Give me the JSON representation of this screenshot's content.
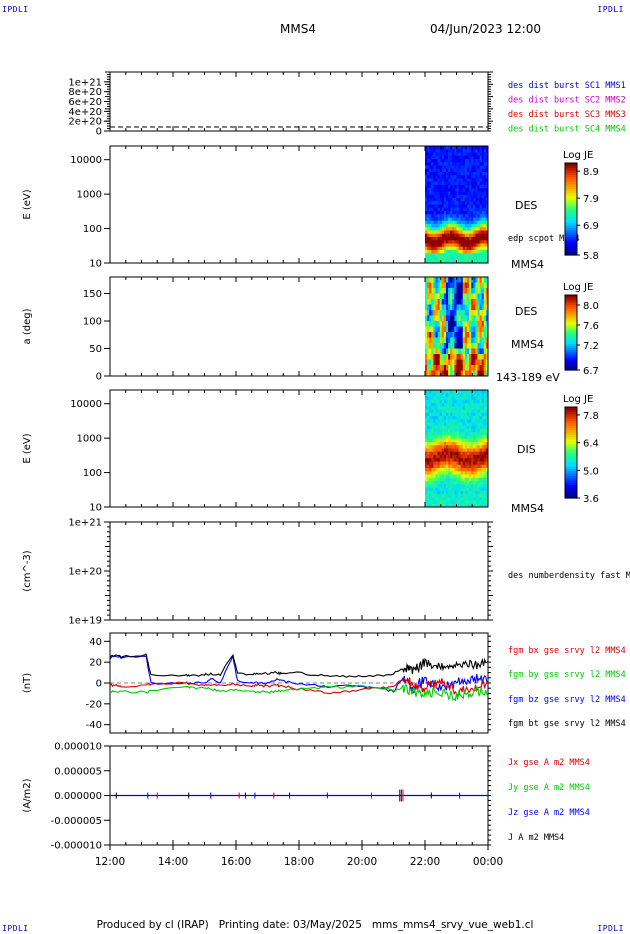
{
  "header": {
    "corner_tl": "IPDLI",
    "corner_tr": "IPDLI",
    "corner_bl": "IPDLI",
    "corner_br": "IPDLI",
    "spacecraft": "MMS4",
    "datetime": "04/Jun/2023 12:00"
  },
  "footer": {
    "produced": "Produced by cl (IRAP)",
    "printing": "Printing date: 03/May/2025",
    "file": "mms_mms4_srvy_vue_web1.cl"
  },
  "colors": {
    "c1": "#0000ff",
    "c2": "#cc00cc",
    "c3": "#dd0000",
    "c4": "#00cc00",
    "black": "#000000"
  },
  "chart_data": [
    {
      "type": "line",
      "panel": "burst",
      "ylabel": "",
      "yticks": [
        "1e+21",
        "8e+20",
        "6e+20",
        "4e+20",
        "2e+20",
        "0"
      ],
      "ylim": [
        0,
        1.2e+21
      ],
      "series": [
        {
          "name": "des dist burst SC1 MMS1",
          "color": "#0000ff"
        },
        {
          "name": "des dist burst SC2 MMS2",
          "color": "#cc00cc"
        },
        {
          "name": "des dist burst SC3 MMS3",
          "color": "#dd0000"
        },
        {
          "name": "des dist burst SC4 MMS4",
          "color": "#00cc00"
        }
      ],
      "values": "zero (dashed line at 0 for the whole interval)"
    },
    {
      "type": "heatmap",
      "panel": "des_energy",
      "ylabel": "E (eV)",
      "scale": "log",
      "ylim": [
        10,
        25000
      ],
      "yticks": [
        "10000",
        "1000",
        "100",
        "10"
      ],
      "label": "DES",
      "label2": "edp scpot MMS4",
      "label3": "MMS4",
      "colorbar": {
        "title": "Log JE",
        "ticks": [
          "8.9",
          "7.9",
          "6.9",
          "5.8"
        ],
        "range": [
          5.8,
          9.2
        ]
      },
      "data_start": "22:00",
      "data_end": "24:00"
    },
    {
      "type": "heatmap",
      "panel": "des_pitch",
      "ylabel": "a (deg)",
      "ylim": [
        0,
        180
      ],
      "yticks": [
        "150",
        "100",
        "50",
        "0"
      ],
      "label": "DES",
      "label2": "MMS4",
      "label3": "143-189 eV",
      "colorbar": {
        "title": "Log JE",
        "ticks": [
          "8.0",
          "7.6",
          "7.2",
          "6.7"
        ],
        "range": [
          6.7,
          8.2
        ]
      },
      "data_start": "22:00",
      "data_end": "24:00"
    },
    {
      "type": "heatmap",
      "panel": "dis_energy",
      "ylabel": "E (eV)",
      "scale": "log",
      "ylim": [
        10,
        25000
      ],
      "yticks": [
        "10000",
        "1000",
        "100",
        "10"
      ],
      "label": "DIS",
      "label3": "MMS4",
      "colorbar": {
        "title": "Log JE",
        "ticks": [
          "7.8",
          "6.4",
          "5.0",
          "3.6"
        ],
        "range": [
          3.6,
          8.2
        ]
      },
      "data_start": "22:00",
      "data_end": "24:00"
    },
    {
      "type": "line",
      "panel": "density",
      "ylabel": "(cm^-3)",
      "scale": "log",
      "yticks": [
        "1e+21",
        "1e+20",
        "1e+19"
      ],
      "series": [
        {
          "name": "des numberdensity fast M",
          "color": "#000000"
        }
      ]
    },
    {
      "type": "line",
      "panel": "fgm",
      "ylabel": "(nT)",
      "ylim": [
        -48,
        48
      ],
      "yticks": [
        "40",
        "20",
        "0",
        "-20",
        "-40"
      ],
      "x": [
        12.0,
        12.2,
        12.35,
        13.15,
        13.3,
        14.4,
        14.55,
        15.0,
        15.2,
        15.5,
        15.9,
        16.05,
        16.5,
        16.7,
        17.0,
        17.3,
        17.45,
        17.8,
        18.5,
        19.0,
        19.5,
        20.0,
        20.6,
        21.0,
        21.3,
        21.6,
        22.0,
        22.5,
        23.0,
        23.5,
        24.0
      ],
      "series": [
        {
          "name": "fgm bx gse srvy l2 MMS4",
          "color": "#dd0000",
          "values": [
            -2,
            -2,
            -3,
            -2,
            -1,
            0,
            -1,
            -2,
            -2,
            -2,
            -1,
            -2,
            -3,
            -2,
            -3,
            -2,
            -3,
            -5,
            -8,
            -10,
            -8,
            -6,
            -5,
            -3,
            5,
            0,
            -5,
            2,
            -8,
            -5,
            -2
          ]
        },
        {
          "name": "fgm by gse srvy l2 MMS4",
          "color": "#00cc00",
          "values": [
            -8,
            -9,
            -8,
            -9,
            -7,
            -4,
            -4,
            -5,
            -6,
            -8,
            -6,
            -7,
            -8,
            -8,
            -9,
            -8,
            -7,
            -6,
            -5,
            -4,
            -4,
            -3,
            -5,
            -7,
            -5,
            -8,
            -10,
            -10,
            -12,
            -10,
            -8
          ]
        },
        {
          "name": "fgm bz gse srvy l2 MMS4",
          "color": "#0000ff",
          "values": [
            24,
            26,
            24,
            26,
            0,
            0,
            0,
            0,
            4,
            0,
            26,
            2,
            0,
            0,
            0,
            4,
            2,
            0,
            -2,
            -4,
            -2,
            -3,
            -5,
            -8,
            5,
            -6,
            5,
            -5,
            0,
            5,
            2
          ]
        },
        {
          "name": "fgm bt gse srvy l2 MMS4",
          "color": "#000000",
          "values": [
            25,
            27,
            25,
            27,
            8,
            7,
            7,
            8,
            9,
            8,
            27,
            9,
            8,
            9,
            9,
            10,
            9,
            10,
            8,
            7,
            6,
            6,
            7,
            9,
            15,
            11,
            20,
            16,
            18,
            17,
            20
          ]
        }
      ]
    },
    {
      "type": "line",
      "panel": "current",
      "ylabel": "(A/m2)",
      "ylim": [
        -1e-05,
        1e-05
      ],
      "yticks": [
        "0.000010",
        "0.000005",
        "0.000000",
        "-0.000005",
        "-0.000010"
      ],
      "series": [
        {
          "name": "Jx gse A m2 MMS4",
          "color": "#dd0000"
        },
        {
          "name": "Jy gse A m2 MMS4",
          "color": "#00cc00"
        },
        {
          "name": "Jz gse A m2 MMS4",
          "color": "#0000ff"
        },
        {
          "name": "J A m2 MMS4",
          "color": "#000000"
        }
      ],
      "values": "near 0 with small spikes"
    }
  ],
  "x_axis": {
    "ticks": [
      "12:00",
      "14:00",
      "16:00",
      "18:00",
      "20:00",
      "22:00",
      "00:00"
    ],
    "range_hours": [
      12,
      24
    ]
  }
}
